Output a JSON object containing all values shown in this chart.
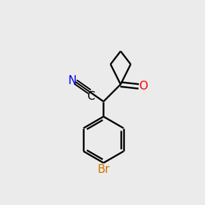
{
  "background_color": "#ebebeb",
  "atoms": {
    "N": {
      "color": "#0000ee"
    },
    "O": {
      "color": "#ff0000"
    },
    "Br": {
      "color": "#cc7700"
    },
    "C": {
      "color": "#000000"
    }
  },
  "bond_color": "#000000",
  "bond_width": 1.8,
  "font_size_atom": 12,
  "xlim": [
    0,
    10
  ],
  "ylim": [
    0,
    10
  ]
}
